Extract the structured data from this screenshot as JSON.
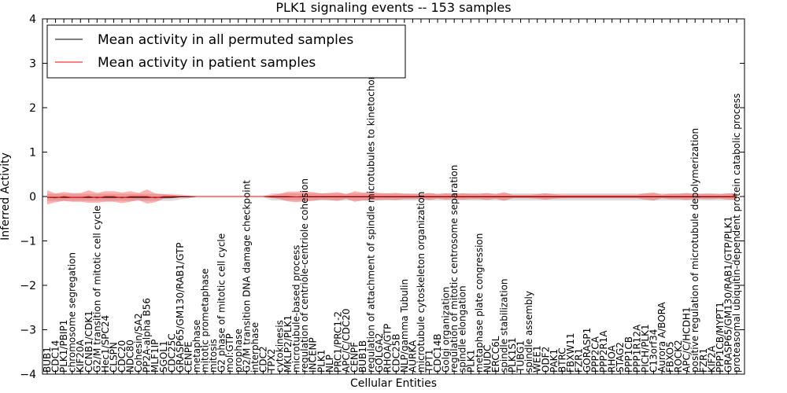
{
  "chart_data": {
    "type": "line",
    "title": "PLK1 signaling events -- 153 samples",
    "xlabel": "Cellular Entities",
    "ylabel": "Inferred Activity",
    "ylim": [
      -4,
      4
    ],
    "yticks": [
      -4,
      -3,
      -2,
      -1,
      0,
      1,
      2,
      3,
      4
    ],
    "ytick_labels": [
      "−4",
      "−3",
      "−2",
      "−1",
      "0",
      "1",
      "2",
      "3",
      "4"
    ],
    "grid": false,
    "legend_position": "top-left",
    "legend": [
      {
        "label": "Mean activity in all permuted samples",
        "color": "#000000"
      },
      {
        "label": "Mean activity in patient samples",
        "color": "#ff0000"
      }
    ],
    "entities": [
      "BUB1",
      "CDC14",
      "PLK1/PBIP1",
      "chromosome segregation",
      "KIF20A",
      "CCNB1/CDK1",
      "G2/M transition of mitotic cell cycle",
      "Hec1/SPC24",
      "CLSPN",
      "CDC20",
      "NDC80",
      "Cohesin/SA2",
      "PP2A-alpha B56",
      "MLF1IP",
      "SGOL1",
      "CDC25C",
      "GRASP65/GM130/RAB1/GTP",
      "CENPE",
      "metaphase",
      "mitotic prometaphase",
      "mitosis",
      "G2 phase of mitotic cell cycle",
      "mol:GTP",
      "prophase",
      "G2/M transition DNA damage checkpoint",
      "interphase",
      "CDC2",
      "TPX2",
      "cytokinesis",
      "MKLP2/PLK1",
      "microtubule-based process",
      "regulation of centriole-centriole cohesion",
      "INCENP",
      "PLK1",
      "NLP",
      "PRC1/PRC1-2",
      "APC/C/CDC20",
      "CENPF",
      "BUB1B",
      "regulation of attachment of spindle microtubules to kinetochore",
      "GOLGA2",
      "RHOA/GTP",
      "CDC25B",
      "NLP/gamma Tubulin",
      "AURKA",
      "microtubule cytoskeleton organization",
      "TPT1",
      "CDC14B",
      "Golgi organization",
      "regulation of mitotic centrosome separation",
      "spindle elongation",
      "PLK1",
      "metaphase plate congression",
      "NUDC",
      "ERCC6L",
      "spindle stabilization",
      "PLK1S1",
      "TUBG1",
      "spindle assembly",
      "WEE1",
      "ODF2",
      "PAK1",
      "BTRC",
      "FBXW11",
      "FZR1",
      "GORASP1",
      "PPP2CA",
      "PPP2R1A",
      "RHOA",
      "STAG2",
      "PPP1CB",
      "PPP1R12A",
      "PICH/PLK1",
      "C13orf34",
      "Aurora A/BORA",
      "FBXO5",
      "ROCK2",
      "APC/C/HCDH1",
      "positive regulation of microtubule depolymerization",
      "FZR1",
      "KIF2A",
      "PPP1CB/MYPT1",
      "GRASP65/GM130/RAB1/GTP/PLK1",
      "proteasomal ubiquitin-dependent protein catabolic process"
    ],
    "series": [
      {
        "name": "Mean activity in all permuted samples",
        "color": "#000000",
        "values": [
          -0.02,
          -0.02,
          -0.02,
          -0.02,
          -0.02,
          -0.02,
          -0.02,
          -0.02,
          -0.02,
          -0.02,
          -0.02,
          -0.02,
          -0.02,
          -0.02,
          -0.02,
          -0.02,
          -0.01,
          -0.01,
          0,
          0,
          0,
          0,
          0,
          0,
          0,
          0,
          0,
          -0.01,
          -0.01,
          -0.01,
          -0.01,
          -0.01,
          -0.01,
          -0.01,
          -0.01,
          -0.01,
          -0.01,
          -0.01,
          -0.01,
          -0.01,
          -0.01,
          -0.01,
          -0.01,
          -0.01,
          -0.01,
          -0.01,
          -0.01,
          -0.01,
          -0.01,
          -0.01,
          -0.01,
          -0.01,
          -0.01,
          -0.01,
          -0.01,
          -0.01,
          -0.01,
          -0.01,
          -0.01,
          -0.01,
          -0.01,
          -0.01,
          -0.01,
          -0.01,
          -0.01,
          -0.01,
          -0.01,
          -0.01,
          -0.01,
          -0.01,
          -0.01,
          -0.01,
          -0.01,
          -0.01,
          -0.01,
          -0.01,
          -0.01,
          -0.01,
          -0.01,
          -0.01,
          -0.01,
          -0.01,
          -0.01,
          -0.01
        ],
        "band": [
          0.08,
          0.08,
          0.08,
          0.08,
          0.08,
          0.08,
          0.08,
          0.08,
          0.08,
          0.08,
          0.08,
          0.08,
          0.08,
          0.08,
          0.08,
          0.08,
          0.06,
          0.04,
          0.01,
          0.01,
          0.01,
          0.01,
          0.01,
          0.01,
          0.01,
          0.01,
          0.01,
          0.08,
          0.08,
          0.08,
          0.08,
          0.08,
          0.08,
          0.08,
          0.08,
          0.08,
          0.08,
          0.08,
          0.08,
          0.08,
          0.08,
          0.08,
          0.08,
          0.08,
          0.08,
          0.08,
          0.08,
          0.08,
          0.08,
          0.08,
          0.08,
          0.08,
          0.08,
          0.08,
          0.08,
          0.08,
          0.08,
          0.08,
          0.08,
          0.08,
          0.08,
          0.08,
          0.08,
          0.08,
          0.08,
          0.08,
          0.08,
          0.08,
          0.08,
          0.08,
          0.08,
          0.08,
          0.08,
          0.08,
          0.08,
          0.08,
          0.08,
          0.08,
          0.08,
          0.08,
          0.08,
          0.08,
          0.08,
          0.08
        ]
      },
      {
        "name": "Mean activity in patient samples",
        "color": "#ff0000",
        "values": [
          -0.02,
          -0.03,
          0,
          -0.02,
          -0.02,
          0,
          -0.03,
          0,
          0,
          -0.03,
          0,
          0,
          0,
          -0.03,
          0,
          0,
          0,
          0,
          0,
          0,
          0,
          0,
          0,
          0,
          0,
          0,
          0,
          0,
          0,
          0,
          -0.01,
          0,
          0,
          0,
          0,
          0,
          0,
          0,
          0,
          0,
          0,
          0,
          0,
          0,
          0,
          0,
          0,
          0,
          0,
          0,
          0,
          0,
          0,
          0,
          0,
          0,
          0,
          0,
          0,
          0,
          0,
          0,
          0,
          0,
          0,
          0,
          0,
          0,
          0,
          0,
          0,
          0,
          0,
          0,
          0,
          0,
          0,
          0,
          0,
          0,
          0,
          0,
          0,
          0
        ],
        "band": [
          0.16,
          0.1,
          0.1,
          0.1,
          0.1,
          0.14,
          0.11,
          0.12,
          0.12,
          0.12,
          0.12,
          0.08,
          0.16,
          0.1,
          0.05,
          0.04,
          0.02,
          0.01,
          0.01,
          0.01,
          0.01,
          0.01,
          0.01,
          0.01,
          0.01,
          0.01,
          0.01,
          0.03,
          0.06,
          0.11,
          0.12,
          0.11,
          0.1,
          0.07,
          0.08,
          0.1,
          0.05,
          0.12,
          0.09,
          0.09,
          0.08,
          0.07,
          0.08,
          0.06,
          0.06,
          0.05,
          0.08,
          0.05,
          0.07,
          0.06,
          0.07,
          0.06,
          0.06,
          0.08,
          0.05,
          0.1,
          0.04,
          0.04,
          0.04,
          0.05,
          0.07,
          0.05,
          0.04,
          0.04,
          0.04,
          0.04,
          0.04,
          0.04,
          0.04,
          0.04,
          0.04,
          0.04,
          0.07,
          0.09,
          0.04,
          0.06,
          0.06,
          0.08,
          0.05,
          0.06,
          0.06,
          0.05,
          0.07,
          0.07
        ]
      }
    ]
  }
}
